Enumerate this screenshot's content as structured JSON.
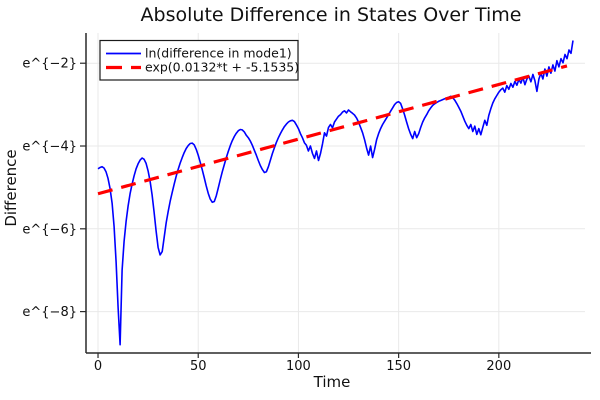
{
  "title": "Absolute Difference in States Over Time",
  "colors": {
    "series1": "#0000ff",
    "series2": "#ff0000",
    "grid": "#e9e9e9",
    "axis": "#2a2a2a",
    "text": "#111111",
    "legend_border": "#1a1a1a",
    "background": "#ffffff"
  },
  "chart_data": {
    "type": "line",
    "title": "Absolute Difference in States Over Time",
    "xlabel": "Time",
    "ylabel": "Difference",
    "grid": true,
    "legend_position": "top-left",
    "xlim": [
      -6,
      243
    ],
    "ylim_ln": [
      -9.0,
      -1.27
    ],
    "x_ticks": [
      0,
      50,
      100,
      150,
      200
    ],
    "y_ticks_ln": [
      -2,
      -4,
      -6,
      -8
    ],
    "y_tick_labels": [
      "e^{−2}",
      "e^{−4}",
      "e^{−6}",
      "e^{−8}"
    ],
    "series": [
      {
        "name": "ln(difference in mode1)",
        "color": "#0000ff",
        "style": "solid",
        "x": {
          "start": 0,
          "step": 1,
          "count": 238
        },
        "ln_y": [
          -4.55,
          -4.52,
          -4.5,
          -4.53,
          -4.62,
          -4.78,
          -5.02,
          -5.38,
          -5.95,
          -6.8,
          -7.9,
          -8.8,
          -7.0,
          -6.3,
          -5.82,
          -5.45,
          -5.15,
          -4.92,
          -4.72,
          -4.55,
          -4.43,
          -4.34,
          -4.29,
          -4.32,
          -4.42,
          -4.6,
          -4.85,
          -5.18,
          -5.6,
          -6.05,
          -6.45,
          -6.63,
          -6.55,
          -6.2,
          -5.85,
          -5.58,
          -5.33,
          -5.12,
          -4.92,
          -4.73,
          -4.56,
          -4.41,
          -4.28,
          -4.16,
          -4.06,
          -3.99,
          -3.94,
          -3.93,
          -3.97,
          -4.08,
          -4.22,
          -4.39,
          -4.57,
          -4.76,
          -4.96,
          -5.14,
          -5.28,
          -5.36,
          -5.34,
          -5.2,
          -5.01,
          -4.81,
          -4.62,
          -4.45,
          -4.28,
          -4.13,
          -3.99,
          -3.87,
          -3.77,
          -3.69,
          -3.63,
          -3.6,
          -3.61,
          -3.66,
          -3.74,
          -3.8,
          -3.88,
          -3.98,
          -4.1,
          -4.22,
          -4.35,
          -4.47,
          -4.57,
          -4.64,
          -4.62,
          -4.5,
          -4.34,
          -4.18,
          -4.04,
          -3.91,
          -3.8,
          -3.7,
          -3.61,
          -3.53,
          -3.47,
          -3.42,
          -3.39,
          -3.38,
          -3.41,
          -3.49,
          -3.58,
          -3.7,
          -3.8,
          -3.92,
          -3.98,
          -4.12,
          -4.0,
          -4.18,
          -4.3,
          -4.12,
          -4.35,
          -4.18,
          -3.95,
          -3.68,
          -3.76,
          -3.55,
          -3.48,
          -3.56,
          -3.42,
          -3.35,
          -3.28,
          -3.24,
          -3.18,
          -3.15,
          -3.2,
          -3.13,
          -3.17,
          -3.21,
          -3.25,
          -3.32,
          -3.42,
          -3.55,
          -3.68,
          -3.85,
          -4.05,
          -4.22,
          -4.0,
          -4.28,
          -4.08,
          -3.85,
          -3.7,
          -3.58,
          -3.48,
          -3.4,
          -3.32,
          -3.24,
          -3.16,
          -3.08,
          -3.0,
          -2.95,
          -2.93,
          -2.97,
          -3.1,
          -3.25,
          -3.42,
          -3.58,
          -3.72,
          -3.82,
          -3.65,
          -3.8,
          -3.7,
          -3.55,
          -3.42,
          -3.32,
          -3.24,
          -3.15,
          -3.08,
          -3.02,
          -2.98,
          -2.95,
          -2.92,
          -2.9,
          -2.88,
          -2.86,
          -2.84,
          -2.82,
          -2.8,
          -2.83,
          -2.89,
          -2.97,
          -3.06,
          -3.16,
          -3.28,
          -3.4,
          -3.5,
          -3.58,
          -3.48,
          -3.65,
          -3.52,
          -3.72,
          -3.58,
          -3.73,
          -3.55,
          -3.38,
          -3.5,
          -3.26,
          -3.1,
          -2.96,
          -2.86,
          -2.78,
          -2.7,
          -2.64,
          -2.6,
          -2.7,
          -2.54,
          -2.63,
          -2.49,
          -2.58,
          -2.44,
          -2.53,
          -2.39,
          -2.48,
          -2.34,
          -2.52,
          -2.38,
          -2.31,
          -2.45,
          -2.27,
          -2.42,
          -2.68,
          -2.38,
          -2.24,
          -2.38,
          -2.14,
          -2.31,
          -2.09,
          -2.24,
          -2.04,
          -2.19,
          -1.94,
          -2.09,
          -1.89,
          -1.99,
          -1.79,
          -1.89,
          -1.68,
          -1.76,
          -1.45
        ]
      },
      {
        "name": "exp(0.0132*t + -5.1535)",
        "color": "#ff0000",
        "style": "dashed",
        "slope": 0.0132,
        "intercept": -5.1535,
        "x_range": [
          0,
          234
        ],
        "ln_y_endpoints": [
          -5.1535,
          -2.0647
        ]
      }
    ]
  }
}
